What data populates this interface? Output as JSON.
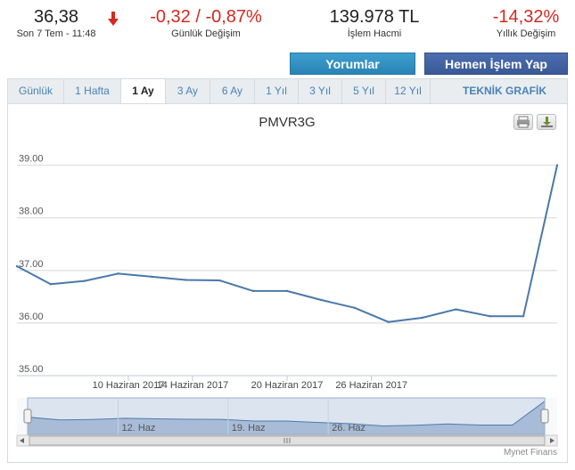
{
  "stats": {
    "price": {
      "value": "36,38",
      "label": "Son 7 Tem - 11:48"
    },
    "daily_change": {
      "value": "-0,32 / -0,87%",
      "label": "Günlük Değişim"
    },
    "volume": {
      "value": "139.978 TL",
      "label": "İşlem Hacmi"
    },
    "yearly_change": {
      "value": "-14,32%",
      "label": "Yıllık Değişim"
    }
  },
  "buttons": {
    "comments": "Yorumlar",
    "trade": "Hemen İşlem Yap"
  },
  "tabs": [
    "Günlük",
    "1 Hafta",
    "1 Ay",
    "3 Ay",
    "6 Ay",
    "1 Yıl",
    "3 Yıl",
    "5 Yıl",
    "12 Yıl"
  ],
  "active_tab": "1 Ay",
  "technical_tab": "TEKNİK GRAFİK",
  "credits": "Mynet Finans",
  "colors": {
    "line": "#4a78a8",
    "navigator_fill": "#b7c8dc",
    "negative": "#d6281f",
    "grid": "#d8d8d8"
  },
  "chart_data": {
    "type": "line",
    "title": "PMVR3G",
    "ylim": [
      35.0,
      39.4
    ],
    "yticks": [
      "35.00",
      "36.00",
      "37.00",
      "38.00",
      "39.00"
    ],
    "ytick_values": [
      35,
      36,
      37,
      38,
      39
    ],
    "xticks": [
      "10 Haziran 2017",
      "14 Haziran 2017",
      "20 Haziran 2017",
      "26 Haziran 2017"
    ],
    "xtick_index": [
      3.3,
      5.2,
      8.0,
      10.5
    ],
    "values": [
      37.08,
      36.74,
      36.8,
      36.94,
      36.88,
      36.82,
      36.81,
      36.61,
      36.61,
      36.44,
      36.29,
      36.02,
      36.1,
      36.26,
      36.13,
      36.13,
      39.0
    ],
    "navigator": {
      "labels": [
        "12. Haz",
        "19. Haz",
        "26. Haz"
      ],
      "label_index": [
        2.8,
        6.2,
        9.3
      ]
    },
    "grid": true,
    "legend": false
  }
}
